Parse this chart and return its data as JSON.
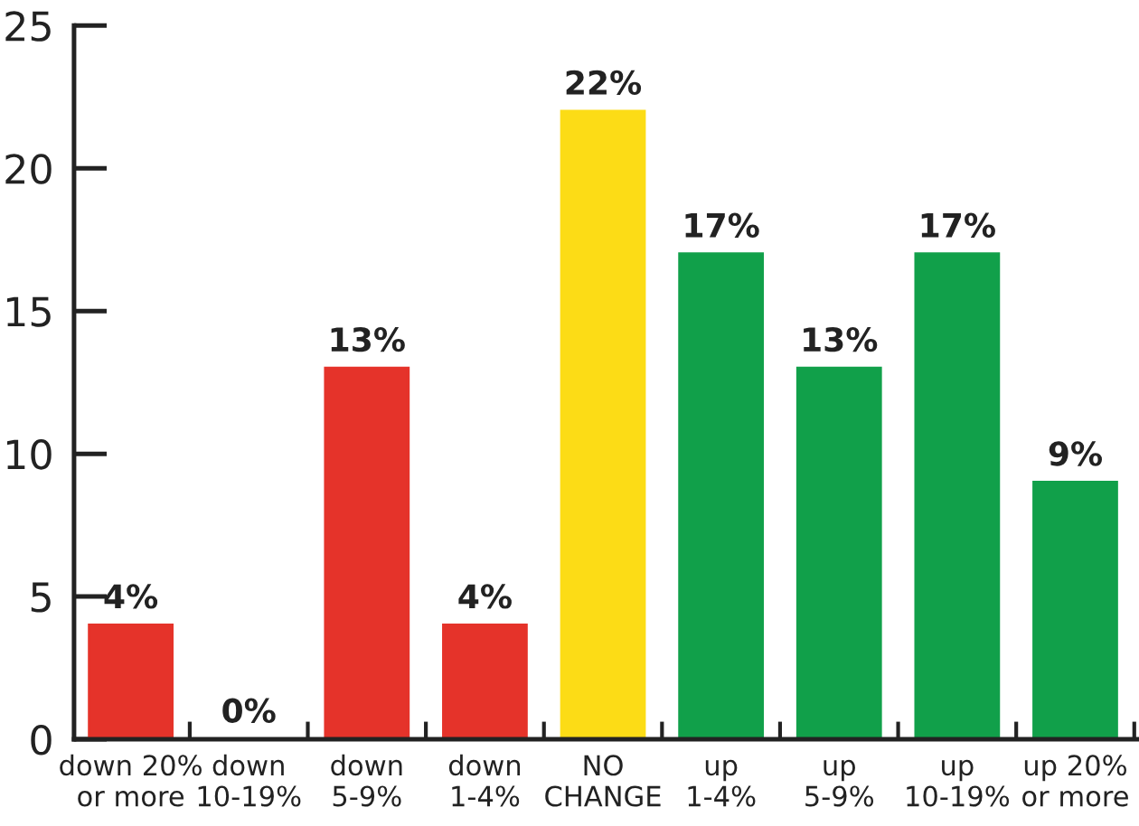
{
  "chart_data": {
    "type": "bar",
    "categories": [
      "down 20%\nor more",
      "down\n10-19%",
      "down\n5-9%",
      "down\n1-4%",
      "NO\nCHANGE",
      "up\n1-4%",
      "up\n5-9%",
      "up\n10-19%",
      "up 20%\nor more"
    ],
    "values": [
      4,
      0,
      13,
      4,
      22,
      17,
      13,
      17,
      9
    ],
    "colors": [
      "#e5332a",
      "#e5332a",
      "#e5332a",
      "#e5332a",
      "#fcdc16",
      "#11a04a",
      "#11a04a",
      "#11a04a",
      "#11a04a"
    ],
    "value_labels": [
      "4%",
      "0%",
      "13%",
      "4%",
      "22%",
      "17%",
      "13%",
      "17%",
      "9%"
    ],
    "ylim": [
      0,
      25
    ],
    "yticks": [
      0,
      5,
      10,
      15,
      20,
      25
    ]
  }
}
